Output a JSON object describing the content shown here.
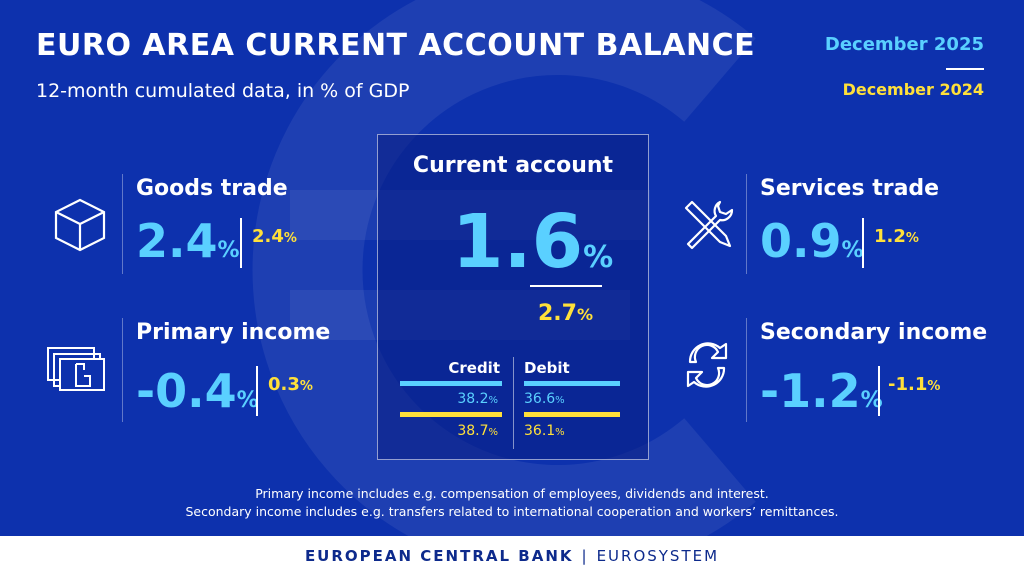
{
  "header": {
    "title": "EURO AREA CURRENT ACCOUNT BALANCE",
    "subtitle": "12-month cumulated data, in % of GDP",
    "legend_current": "December 2025",
    "legend_previous": "December 2024"
  },
  "colors": {
    "background": "#0d31ad",
    "current": "#5ad0ff",
    "previous": "#ffe03a",
    "footer_text": "#0d2a8c"
  },
  "percent_sign": "%",
  "goods_trade": {
    "icon": "box-icon",
    "label": "Goods trade",
    "current": "2.4",
    "previous": "2.4"
  },
  "primary_income": {
    "icon": "banknote-icon",
    "label": "Primary income",
    "current": "-0.4",
    "previous": "0.3"
  },
  "services_trade": {
    "icon": "tools-icon",
    "label": "Services trade",
    "current": "0.9",
    "previous": "1.2"
  },
  "secondary_income": {
    "icon": "transfer-arrows-icon",
    "label": "Secondary income",
    "current": "-1.2",
    "previous": "-1.1"
  },
  "current_account": {
    "label": "Current account",
    "current": "1.6",
    "previous": "2.7",
    "credit_label": "Credit",
    "debit_label": "Debit",
    "credit_current": "38.2",
    "credit_previous": "38.7",
    "debit_current": "36.6",
    "debit_previous": "36.1"
  },
  "footnotes": [
    "Primary income includes e.g. compensation of employees, dividends and interest.",
    "Secondary income includes e.g. transfers related to international cooperation and workers’ remittances."
  ],
  "footer": {
    "institution": "EUROPEAN CENTRAL BANK",
    "separator": "|",
    "system": "EUROSYSTEM"
  }
}
